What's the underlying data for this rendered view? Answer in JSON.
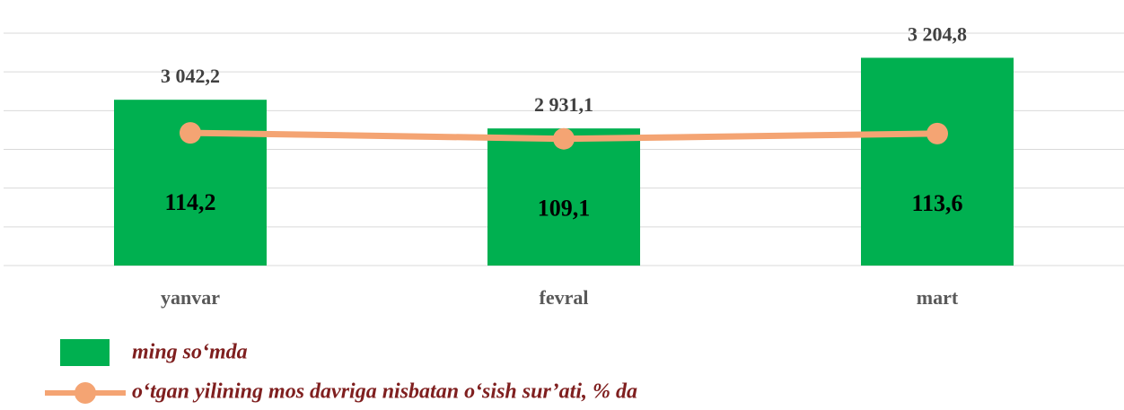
{
  "chart_data": {
    "type": "bar",
    "categories": [
      "yanvar",
      "fevral",
      "mart"
    ],
    "series": [
      {
        "name": "ming so‘mda",
        "color": "#00b050",
        "values": [
          3042.2,
          2931.1,
          3204.8
        ],
        "value_labels": [
          "3 042,2",
          "2 931,1",
          "3 204,8"
        ]
      },
      {
        "name": "o‘tgan yilining mos davriga nisbatan o‘sish sur’ati, % da",
        "color": "#f4a473",
        "axis": "y2",
        "type": "line",
        "values": [
          114.2,
          109.1,
          113.6
        ],
        "value_labels": [
          "114,2",
          "109,1",
          "113,6"
        ]
      }
    ],
    "ylim": [
      2400,
      3300
    ],
    "yticks": [
      2400,
      2550,
      2700,
      2850,
      3000,
      3150,
      3300
    ],
    "y2lim": [
      0,
      200
    ],
    "grid": true
  }
}
